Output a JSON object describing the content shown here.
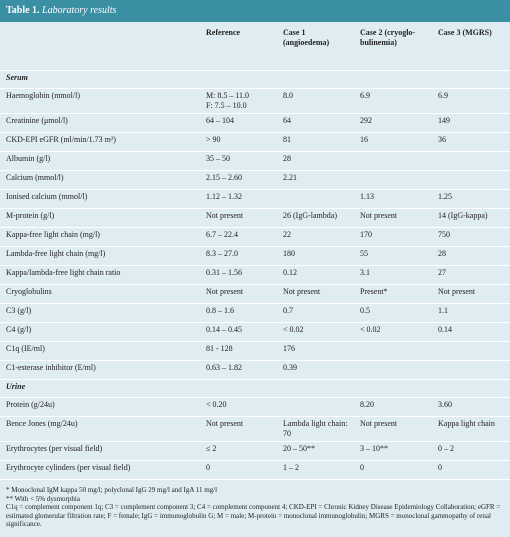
{
  "title": {
    "label": "Table 1.",
    "text": "Laboratory results"
  },
  "table": {
    "columns": [
      "Reference",
      "Case 1 (angioedema)",
      "Case 2 (cryoglo-bulinemia)",
      "Case 3 (MGRS)"
    ],
    "sections": [
      {
        "name": "Serum",
        "rows": [
          {
            "label": "Haemoglobin (mmol/l)",
            "cells": [
              "M: 8.5 – 11.0\nF: 7.5 – 10.0",
              "8.0",
              "6.9",
              "6.9"
            ]
          },
          {
            "label": "Creatinine (μmol/l)",
            "cells": [
              "64 – 104",
              "64",
              "292",
              "149"
            ]
          },
          {
            "label": "CKD-EPI eGFR (ml/min/1.73 m²)",
            "cells": [
              "> 90",
              "81",
              "16",
              "36"
            ]
          },
          {
            "label": "Albumin (g/l)",
            "cells": [
              "35 – 50",
              "28",
              null,
              null
            ]
          },
          {
            "label": "Calcium (mmol/l)",
            "cells": [
              "2.15 – 2.60",
              "2.21",
              null,
              null
            ]
          },
          {
            "label": "Ionised calcium (mmol/l)",
            "cells": [
              "1.12 – 1.32",
              null,
              "1.13",
              "1.25"
            ]
          },
          {
            "label": "M-protein (g/l)",
            "cells": [
              "Not present",
              "26 (IgG-lambda)",
              "Not present",
              "14 (IgG-kappa)"
            ]
          },
          {
            "label": "Kappa-free light chain (mg/l)",
            "cells": [
              "6.7 – 22.4",
              "22",
              "170",
              "750"
            ]
          },
          {
            "label": "Lambda-free light chain (mg/l)",
            "cells": [
              "8.3 – 27.0",
              "180",
              "55",
              "28"
            ]
          },
          {
            "label": "Kappa/lambda-free light chain ratio",
            "cells": [
              "0.31 – 1.56",
              "0.12",
              "3.1",
              "27"
            ]
          },
          {
            "label": "Cryoglobulins",
            "cells": [
              "Not present",
              "Not present",
              "Present*",
              "Not present"
            ]
          },
          {
            "label": "C3 (g/l)",
            "cells": [
              "0.8 – 1.6",
              "0.7",
              "0.5",
              "1.1"
            ]
          },
          {
            "label": "C4 (g/l)",
            "cells": [
              "0.14 – 0.45",
              "< 0.02",
              "< 0.02",
              "0.14"
            ]
          },
          {
            "label": "C1q (IE/ml)",
            "cells": [
              "81 - 128",
              "176",
              null,
              null
            ]
          },
          {
            "label": "C1-esterase inhibitor (E/ml)",
            "cells": [
              "0.63 – 1.82",
              "0.39",
              null,
              null
            ]
          }
        ]
      },
      {
        "name": "Urine",
        "rows": [
          {
            "label": "Protein (g/24u)",
            "cells": [
              "< 0.20",
              null,
              "8.20",
              "3.60"
            ]
          },
          {
            "label": "Bence Jones (mg/24u)",
            "cells": [
              "Not present",
              "Lambda light chain: 70",
              "Not present",
              "Kappa light chain"
            ]
          },
          {
            "label": "Erythrocytes (per visual field)",
            "cells": [
              "≤ 2",
              "20 – 50**",
              "3 – 10**",
              "0 – 2"
            ]
          },
          {
            "label": "Erythrocyte cylinders (per visual field)",
            "cells": [
              "0",
              "1 – 2",
              "0",
              "0"
            ]
          }
        ]
      }
    ]
  },
  "footnotes": [
    "* Monoclonal IgM kappa 50 mg/l; polyclonal IgG 29 mg/l and IgA 11 mg/l",
    "** With < 5% dysmorphia",
    "C1q = complement component 1q; C3 = complement component 3; C4 = complement component 4; CKD-EPI = Chronic Kidney Disease Epidemiology Collaboration; eGFR = estimated glomerular filtration rate; F = female; IgG = immunoglobulin G; M = male; M-protein = monoclonal immunoglobulin; MGRS = monoclonal gammopathy of renal significance."
  ]
}
